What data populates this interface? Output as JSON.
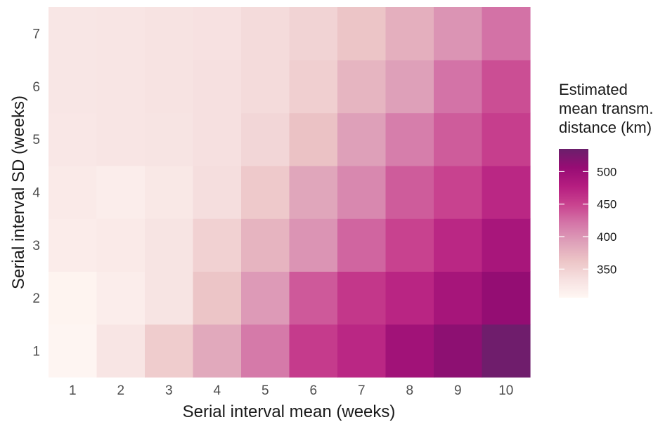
{
  "chart_data": {
    "type": "heatmap",
    "title": "",
    "xlabel": "Serial interval mean (weeks)",
    "ylabel": "Serial interval SD (weeks)",
    "x_categories": [
      "1",
      "2",
      "3",
      "4",
      "5",
      "6",
      "7",
      "8",
      "9",
      "10"
    ],
    "y_categories": [
      "1",
      "2",
      "3",
      "4",
      "5",
      "6",
      "7"
    ],
    "legend": {
      "title_lines": [
        "Estimated",
        "mean transm.",
        "distance (km)"
      ],
      "ticks": [
        350,
        400,
        450,
        500
      ],
      "range": [
        306,
        535
      ],
      "position": "right",
      "colors": [
        "#fff7f3",
        "#f6e0e0",
        "#ecc4c6",
        "#dea0b9",
        "#d476a8",
        "#c9438f",
        "#b51d80",
        "#970c74",
        "#6a1f6b"
      ]
    },
    "values": [
      [
        308,
        328,
        355,
        385,
        418,
        455,
        470,
        497,
        513,
        532
      ],
      [
        310,
        318,
        330,
        362,
        396,
        437,
        458,
        472,
        492,
        508
      ],
      [
        320,
        322,
        330,
        350,
        376,
        400,
        430,
        450,
        470,
        490
      ],
      [
        322,
        318,
        325,
        337,
        358,
        387,
        408,
        435,
        450,
        470
      ],
      [
        326,
        328,
        330,
        335,
        345,
        365,
        392,
        415,
        435,
        453
      ],
      [
        327,
        329,
        331,
        335,
        340,
        352,
        375,
        392,
        422,
        443
      ],
      [
        327,
        329,
        331,
        333,
        340,
        348,
        362,
        380,
        400,
        423
      ]
    ]
  }
}
